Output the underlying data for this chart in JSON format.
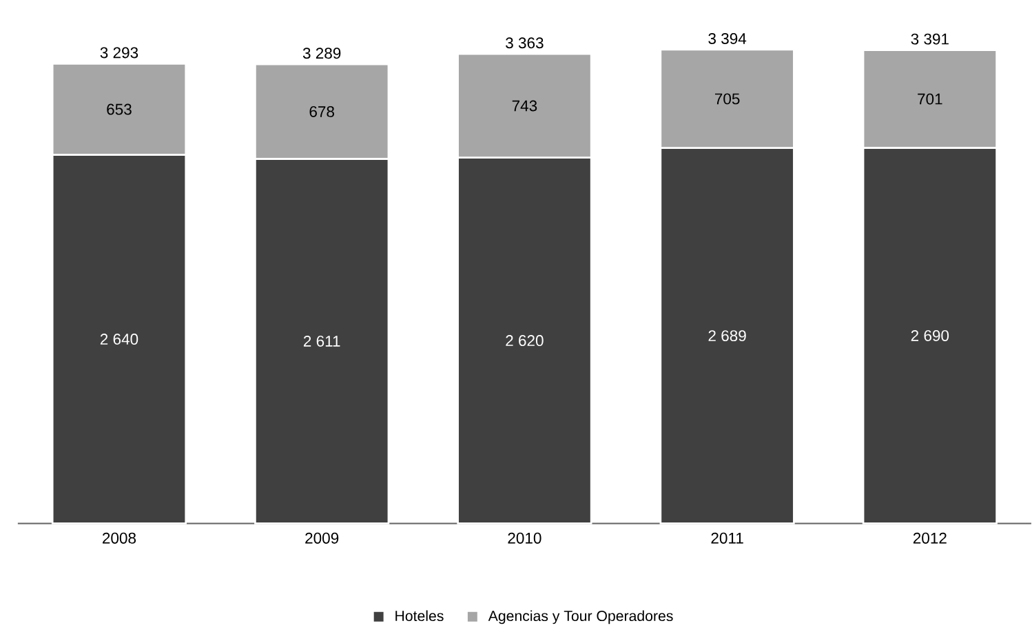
{
  "chart_data": {
    "type": "bar",
    "stacked": true,
    "categories": [
      "2008",
      "2009",
      "2010",
      "2011",
      "2012"
    ],
    "series": [
      {
        "name": "Hoteles",
        "color": "#404040",
        "values": [
          2640,
          2611,
          2620,
          2689,
          2690
        ],
        "value_labels": [
          "2 640",
          "2 611",
          "2 620",
          "2 689",
          "2 690"
        ]
      },
      {
        "name": "Agencias y Tour Operadores",
        "color": "#a6a6a6",
        "values": [
          653,
          678,
          743,
          705,
          701
        ],
        "value_labels": [
          "653",
          "678",
          "743",
          "705",
          "701"
        ]
      }
    ],
    "totals": [
      "3 293",
      "3 289",
      "3 363",
      "3 394",
      "3 391"
    ],
    "legend": "bottom"
  }
}
